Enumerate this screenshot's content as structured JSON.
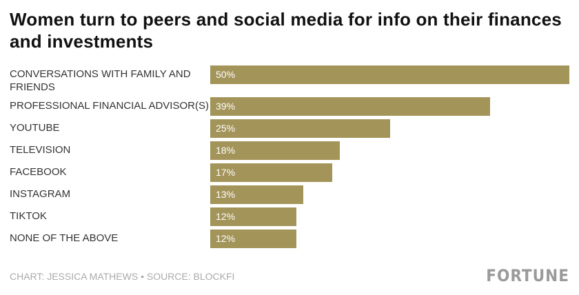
{
  "chart_data": {
    "type": "bar",
    "orientation": "horizontal",
    "title": "Women turn to peers and social media for info on their finances and investments",
    "categories": [
      "CONVERSATIONS WITH FAMILY AND FRIENDS",
      "PROFESSIONAL FINANCIAL ADVISOR(S)",
      "YOUTUBE",
      "TELEVISION",
      "FACEBOOK",
      "INSTAGRAM",
      "TIKTOK",
      "NONE OF THE ABOVE"
    ],
    "values": [
      50,
      39,
      25,
      18,
      17,
      13,
      12,
      12
    ],
    "value_labels": [
      "50%",
      "39%",
      "25%",
      "18%",
      "17%",
      "13%",
      "12%",
      "12%"
    ],
    "color": "#a39459",
    "source": "CHART: JESSICA MATHEWS • SOURCE: BLOCKFI",
    "logo": "FORTUNE"
  }
}
